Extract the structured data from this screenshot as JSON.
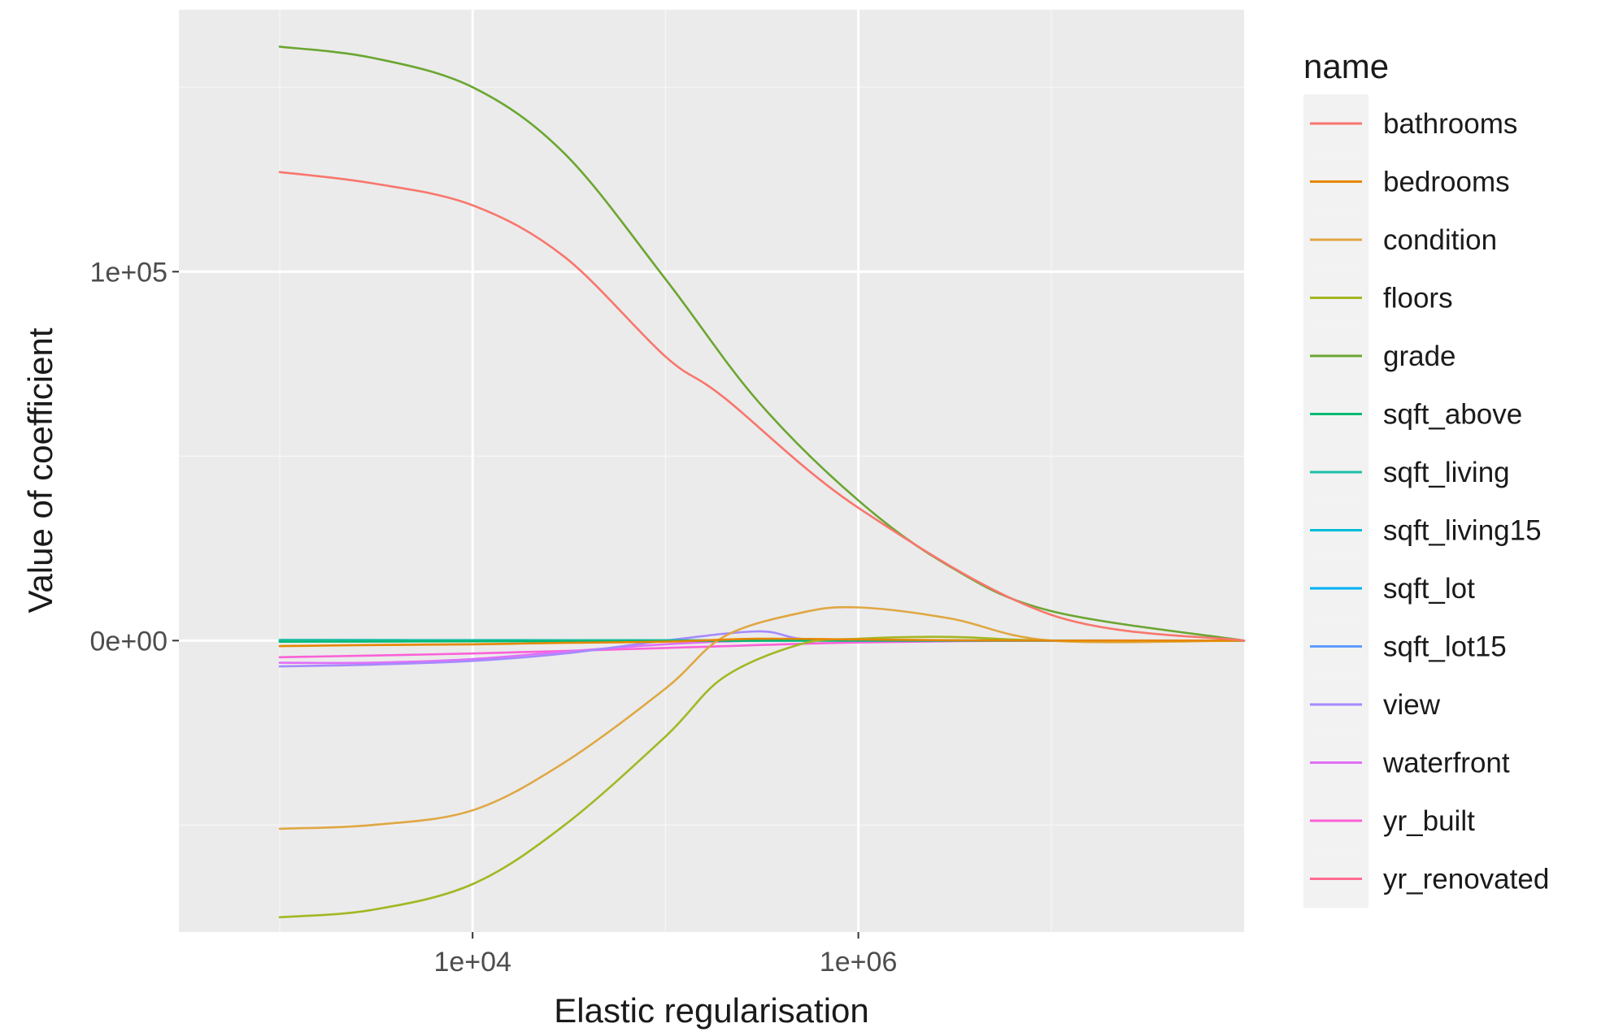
{
  "chart_data": {
    "type": "line",
    "xlabel": "Elastic regularisation",
    "ylabel": "Value of coefficient",
    "x_scale": "log10",
    "xlim": [
      300,
      100000000
    ],
    "ylim": [
      -79000,
      171000
    ],
    "x_ticks": [
      {
        "value": 10000,
        "label": "1e+04"
      },
      {
        "value": 1000000,
        "label": "1e+06"
      }
    ],
    "y_ticks": [
      {
        "value": 0,
        "label": "0e+00"
      },
      {
        "value": 100000,
        "label": "1e+05"
      }
    ],
    "y_minor_gridlines": [
      -50000,
      50000,
      150000
    ],
    "x_minor_gridlines": [
      1000,
      100000,
      10000000
    ],
    "grid": true,
    "legend": {
      "title": "name",
      "placement": "right"
    },
    "series": [
      {
        "name": "bathrooms",
        "color": "#F8766D",
        "x": [
          1000,
          3000,
          10000,
          30000,
          100000,
          200000,
          1000000,
          10000000,
          100000000
        ],
        "y": [
          127000,
          124000,
          118000,
          104000,
          77000,
          66000,
          36000,
          7000,
          0
        ]
      },
      {
        "name": "bedrooms",
        "color": "#E58700",
        "x": [
          1000,
          3000,
          10000,
          30000,
          100000,
          300000,
          1000000,
          3000000,
          10000000,
          100000000
        ],
        "y": [
          -1500,
          -1200,
          -1000,
          -600,
          -300,
          500,
          300,
          100,
          0,
          0
        ]
      },
      {
        "name": "condition",
        "color": "#E0A742",
        "x": [
          1000,
          3000,
          10000,
          30000,
          100000,
          200000,
          500000,
          1000000,
          3000000,
          10000000,
          100000000
        ],
        "y": [
          -51000,
          -50000,
          -46000,
          -33000,
          -13000,
          1000,
          7500,
          9000,
          6000,
          0,
          0
        ]
      },
      {
        "name": "floors",
        "color": "#A3B723",
        "x": [
          1000,
          3000,
          10000,
          30000,
          100000,
          200000,
          500000,
          1000000,
          3000000,
          10000000,
          100000000
        ],
        "y": [
          -75000,
          -73000,
          -66000,
          -50000,
          -26000,
          -10000,
          -1000,
          500,
          1000,
          0,
          0
        ]
      },
      {
        "name": "grade",
        "color": "#6BA631",
        "x": [
          1000,
          3000,
          10000,
          30000,
          100000,
          300000,
          1000000,
          3000000,
          10000000,
          100000000
        ],
        "y": [
          161000,
          158000,
          150000,
          132000,
          98000,
          65000,
          38000,
          20000,
          8000,
          0
        ]
      },
      {
        "name": "sqft_above",
        "color": "#00BA73",
        "x": [
          1000,
          10000,
          100000,
          1000000,
          100000000
        ],
        "y": [
          -300,
          -200,
          -100,
          0,
          0
        ]
      },
      {
        "name": "sqft_living",
        "color": "#1FBFAA",
        "x": [
          1000,
          10000,
          100000,
          1000000,
          100000000
        ],
        "y": [
          200,
          150,
          100,
          50,
          0
        ]
      },
      {
        "name": "sqft_living15",
        "color": "#00BCD8",
        "x": [
          1000,
          10000,
          100000,
          1000000,
          100000000
        ],
        "y": [
          100,
          80,
          50,
          20,
          0
        ]
      },
      {
        "name": "sqft_lot",
        "color": "#00B0F6",
        "x": [
          1000,
          10000,
          100000,
          1000000,
          100000000
        ],
        "y": [
          0,
          0,
          0,
          0,
          0
        ]
      },
      {
        "name": "sqft_lot15",
        "color": "#619CFF",
        "x": [
          1000,
          10000,
          100000,
          1000000,
          100000000
        ],
        "y": [
          -100,
          -80,
          -50,
          0,
          0
        ]
      },
      {
        "name": "view",
        "color": "#A58AFF",
        "x": [
          1000,
          3000,
          10000,
          30000,
          100000,
          300000,
          500000,
          1000000,
          100000000
        ],
        "y": [
          -7000,
          -6500,
          -5500,
          -3500,
          0,
          2500,
          500,
          0,
          0
        ]
      },
      {
        "name": "waterfront",
        "color": "#DF70F8",
        "x": [
          1000,
          3000,
          10000,
          30000,
          100000,
          300000,
          1000000,
          100000000
        ],
        "y": [
          -6000,
          -6000,
          -5000,
          -3000,
          -1000,
          0,
          0,
          0
        ]
      },
      {
        "name": "yr_built",
        "color": "#FB61D7",
        "x": [
          1000,
          10000,
          100000,
          1000000,
          10000000,
          100000000
        ],
        "y": [
          -4500,
          -3500,
          -2000,
          -500,
          0,
          0
        ]
      },
      {
        "name": "yr_renovated",
        "color": "#FF6C91",
        "x": [
          1000,
          10000,
          100000,
          1000000,
          100000000
        ],
        "y": [
          100,
          80,
          50,
          10,
          0
        ]
      }
    ]
  }
}
